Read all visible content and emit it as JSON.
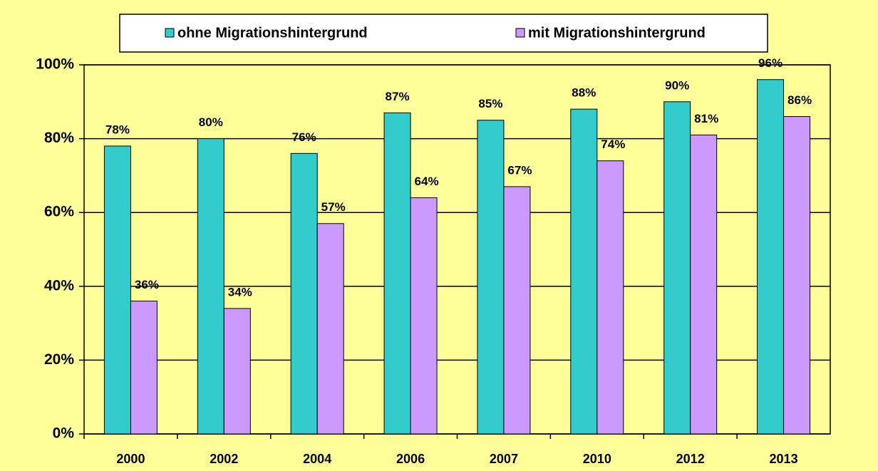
{
  "chart_data": {
    "type": "bar",
    "categories": [
      "2000",
      "2002",
      "2004",
      "2006",
      "2007",
      "2010",
      "2012",
      "2013"
    ],
    "series": [
      {
        "name": "ohne Migrationshintergrund",
        "color": "#33cccc",
        "values": [
          78,
          80,
          76,
          87,
          85,
          88,
          90,
          96
        ],
        "value_labels": [
          "78%",
          "80%",
          "76%",
          "87%",
          "85%",
          "88%",
          "90%",
          "96%"
        ]
      },
      {
        "name": "mit Migrationshintergrund",
        "color": "#cc99ff",
        "values": [
          36,
          34,
          57,
          64,
          67,
          74,
          81,
          86
        ],
        "value_labels": [
          "36%",
          "34%",
          "57%",
          "64%",
          "67%",
          "74%",
          "81%",
          "86%"
        ]
      }
    ],
    "ylim": [
      0,
      100
    ],
    "yticks": [
      {
        "value": 0,
        "label": "0%"
      },
      {
        "value": 20,
        "label": "20%"
      },
      {
        "value": 40,
        "label": "40%"
      },
      {
        "value": 60,
        "label": "60%"
      },
      {
        "value": 80,
        "label": "80%"
      },
      {
        "value": 100,
        "label": "100%"
      }
    ],
    "grid": true,
    "legend": "top"
  }
}
